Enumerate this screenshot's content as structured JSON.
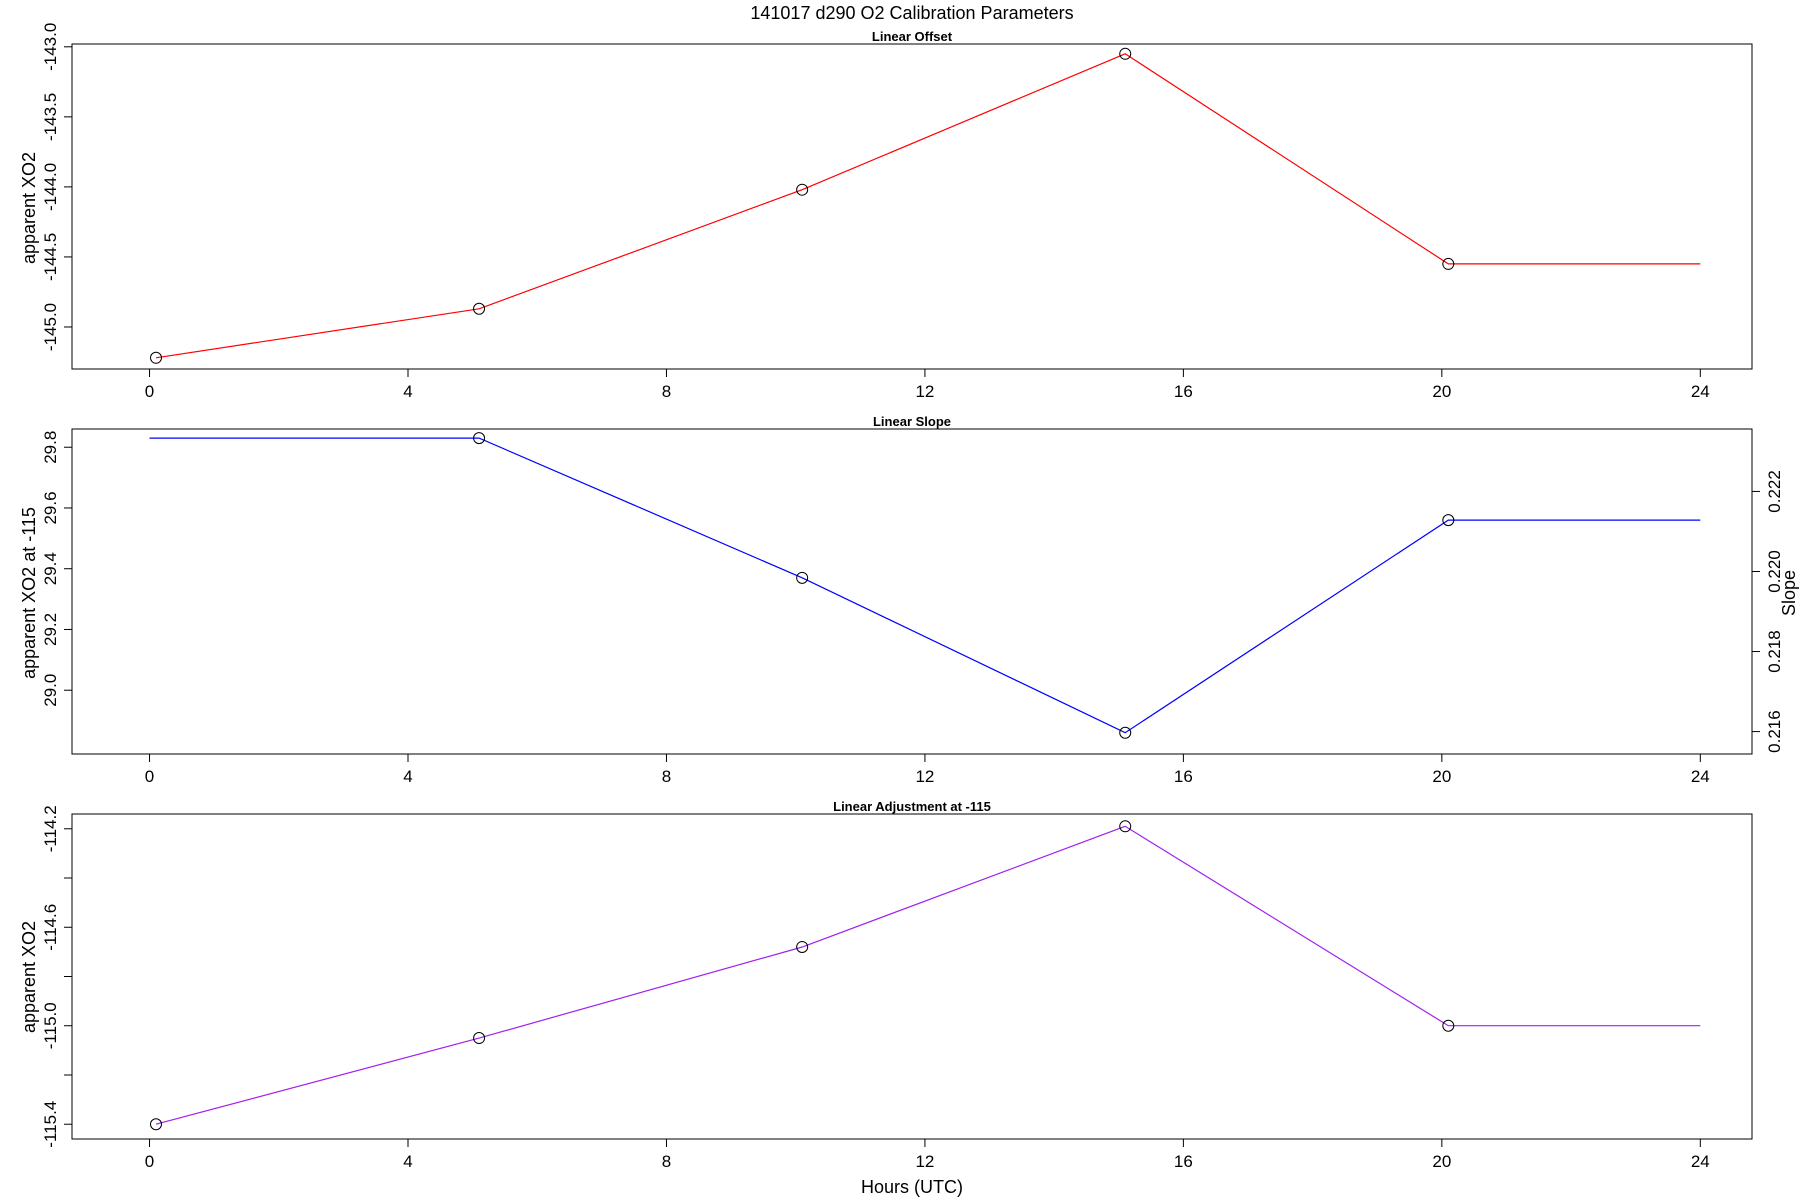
{
  "figure": {
    "title": "141017   d290   O2 Calibration Parameters",
    "xlabel": "Hours (UTC)"
  },
  "chart_data": [
    {
      "type": "line",
      "title": "Linear Offset",
      "xlabel": "",
      "ylabel": "apparent XO2",
      "xlim": [
        -1.2,
        24.8
      ],
      "ylim": [
        -145.3,
        -142.98
      ],
      "x_ticks": [
        0,
        4,
        8,
        12,
        16,
        20,
        24
      ],
      "y_ticks": [
        -145.0,
        -144.5,
        -144.0,
        -143.5,
        -143.0
      ],
      "y_tick_labels": [
        "-145.0",
        "-144.5",
        "-144.0",
        "-143.5",
        "-143.0"
      ],
      "line_color": "#ff0000",
      "series": [
        {
          "x": [
            0.1,
            5.1,
            10.1,
            15.1,
            20.1,
            24.0
          ],
          "y": [
            -145.22,
            -144.87,
            -144.02,
            -143.05,
            -144.55,
            -144.55
          ]
        }
      ],
      "markers": {
        "x": [
          0.1,
          5.1,
          10.1,
          15.1,
          20.1
        ],
        "y": [
          -145.22,
          -144.87,
          -144.02,
          -143.05,
          -144.55
        ]
      }
    },
    {
      "type": "line",
      "title": "Linear Slope",
      "xlabel": "",
      "ylabel": "apparent XO2 at -115",
      "ylabel_right": "Slope",
      "xlim": [
        -1.2,
        24.8
      ],
      "ylim": [
        28.79,
        29.86
      ],
      "ylim_right": [
        0.21544,
        0.22356
      ],
      "x_ticks": [
        0,
        4,
        8,
        12,
        16,
        20,
        24
      ],
      "y_ticks": [
        29.0,
        29.2,
        29.4,
        29.6,
        29.8
      ],
      "y_tick_labels": [
        "29.0",
        "29.2",
        "29.4",
        "29.6",
        "29.8"
      ],
      "y_ticks_right": [
        0.216,
        0.218,
        0.22,
        0.222
      ],
      "y_tick_labels_right": [
        "0.216",
        "0.218",
        "0.220",
        "0.222"
      ],
      "line_color": "#0000ff",
      "series": [
        {
          "x": [
            0.0,
            5.1,
            10.1,
            15.1,
            20.1,
            24.0
          ],
          "y": [
            29.83,
            29.83,
            29.37,
            28.86,
            29.56,
            29.56
          ]
        }
      ],
      "markers": {
        "x": [
          5.1,
          10.1,
          15.1,
          20.1
        ],
        "y": [
          29.83,
          29.37,
          28.86,
          29.56
        ]
      }
    },
    {
      "type": "line",
      "title": "Linear Adjustment at -115",
      "xlabel": "Hours (UTC)",
      "ylabel": "apparent XO2",
      "xlim": [
        -1.2,
        24.8
      ],
      "ylim": [
        -115.46,
        -114.14
      ],
      "x_ticks": [
        0,
        4,
        8,
        12,
        16,
        20,
        24
      ],
      "y_ticks": [
        -115.4,
        -115.2,
        -115.0,
        -114.8,
        -114.6,
        -114.4,
        -114.2
      ],
      "y_tick_labels": [
        "-115.4",
        "",
        "-115.0",
        "",
        "-114.6",
        "",
        "-114.2"
      ],
      "line_color": "#a020f0",
      "series": [
        {
          "x": [
            0.1,
            5.1,
            10.1,
            15.1,
            20.1,
            24.0
          ],
          "y": [
            -115.4,
            -115.05,
            -114.68,
            -114.19,
            -115.0,
            -115.0
          ]
        }
      ],
      "markers": {
        "x": [
          0.1,
          5.1,
          10.1,
          15.1,
          20.1
        ],
        "y": [
          -115.4,
          -115.05,
          -114.68,
          -114.19,
          -115.0
        ]
      }
    }
  ]
}
